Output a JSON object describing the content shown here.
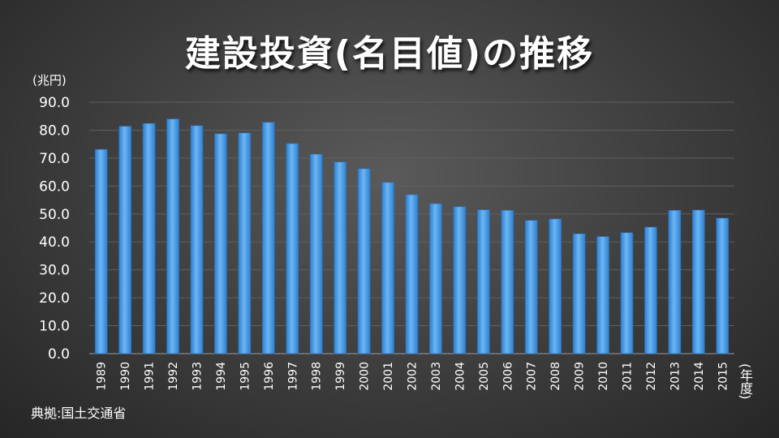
{
  "chart_data": {
    "type": "bar",
    "title": "建設投資(名目値)の推移",
    "ylabel": "(兆円)",
    "xlabel": "(年度)",
    "source": "典拠:国土交通省",
    "ylim": [
      0,
      90
    ],
    "yticks": [
      "0.0",
      "10.0",
      "20.0",
      "30.0",
      "40.0",
      "50.0",
      "60.0",
      "70.0",
      "80.0",
      "90.0"
    ],
    "grid": true,
    "legend": "none",
    "bar_color": "#4a9eea",
    "categories": [
      "1989",
      "1990",
      "1991",
      "1992",
      "1993",
      "1994",
      "1995",
      "1996",
      "1997",
      "1998",
      "1999",
      "2000",
      "2001",
      "2002",
      "2003",
      "2004",
      "2005",
      "2006",
      "2007",
      "2008",
      "2009",
      "2010",
      "2011",
      "2012",
      "2013",
      "2014",
      "2015"
    ],
    "values": [
      73.1,
      81.4,
      82.4,
      84.0,
      81.6,
      78.7,
      79.0,
      82.8,
      75.2,
      71.4,
      68.6,
      66.2,
      61.3,
      56.9,
      53.7,
      52.6,
      51.5,
      51.3,
      47.7,
      48.2,
      42.9,
      41.9,
      43.3,
      45.3,
      51.3,
      51.4,
      48.5
    ]
  }
}
